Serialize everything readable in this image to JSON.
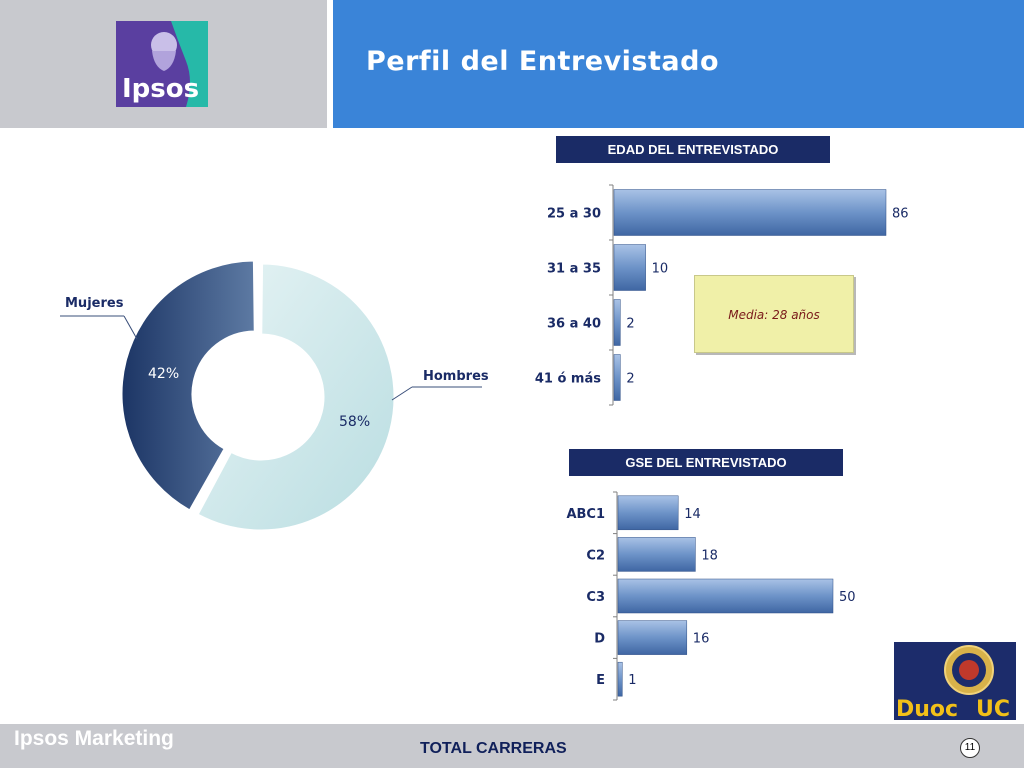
{
  "header": {
    "title": "Perfil del Entrevistado",
    "logo_text": "Ipsos"
  },
  "footer": {
    "brand": "Ipsos Marketing",
    "total_label": "TOTAL CARRERAS",
    "page_number": "11"
  },
  "note": {
    "text": "Media: 28 años"
  },
  "secondary_logo": {
    "text_left": "Duoc",
    "text_right": "UC"
  },
  "colors": {
    "header_blue": "#3a84d8",
    "navy": "#1a2b66",
    "bar": "#6f95c9",
    "donut_dark": "#2b4778",
    "donut_light": "#cfe8ea"
  },
  "chart_data": [
    {
      "type": "pie",
      "variant": "donut",
      "labels": [
        "Mujeres",
        "Hombres"
      ],
      "values": [
        42,
        58
      ],
      "data_labels": [
        "42%",
        "58%"
      ]
    },
    {
      "type": "bar",
      "orientation": "horizontal",
      "title": "EDAD DEL ENTREVISTADO",
      "categories": [
        "25 a 30",
        "31 a 35",
        "36 a 40",
        "41 ó más"
      ],
      "values": [
        86,
        10,
        2,
        2
      ]
    },
    {
      "type": "bar",
      "orientation": "horizontal",
      "title": "GSE DEL ENTREVISTADO",
      "categories": [
        "ABC1",
        "C2",
        "C3",
        "D",
        "E"
      ],
      "values": [
        14,
        18,
        50,
        16,
        1
      ]
    }
  ]
}
